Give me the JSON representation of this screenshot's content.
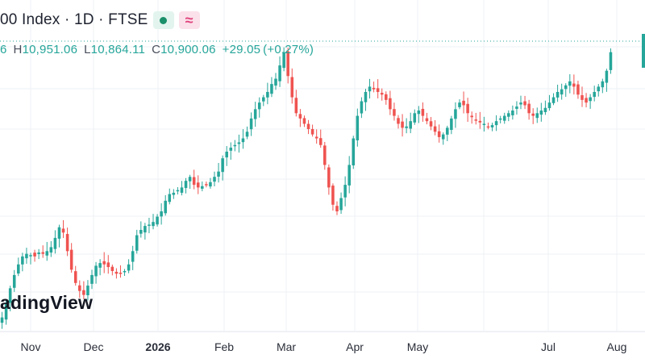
{
  "header": {
    "title_fragment": "00 Index · 1D · FTSE",
    "live_icon": "green-dot-icon",
    "indicator_icon": "wave-icon"
  },
  "ohlc": {
    "open_fragment": "6",
    "high_key": "H",
    "high": "10,951.06",
    "low_key": "L",
    "low": "10,864.11",
    "close_key": "C",
    "close": "10,900.06",
    "change": "+29.05",
    "change_pct": "(+0.27%)"
  },
  "watermark": {
    "text": "adingView"
  },
  "colors": {
    "up": "#26a69a",
    "down": "#ef5350",
    "grid": "#eef0f4",
    "text": "#2a2e39",
    "accent_teal": "#26a69a"
  },
  "chart_data": {
    "type": "candlestick",
    "title": "",
    "xlabel": "",
    "ylabel": "",
    "interval": "1D",
    "x_tick_labels": [
      "Nov",
      "Dec",
      "2026",
      "Feb",
      "Mar",
      "Apr",
      "May",
      "Jul",
      "Aug"
    ],
    "ylim": [
      8800,
      11050
    ],
    "grid": true,
    "last_close": 10900.06,
    "close_path": [
      8900,
      9010,
      9120,
      9220,
      9300,
      9360,
      9380,
      9370,
      9360,
      9390,
      9380,
      9400,
      9430,
      9500,
      9580,
      9540,
      9400,
      9260,
      9160,
      9100,
      9070,
      9140,
      9220,
      9290,
      9310,
      9300,
      9280,
      9250,
      9230,
      9230,
      9250,
      9300,
      9400,
      9520,
      9560,
      9590,
      9600,
      9620,
      9660,
      9700,
      9780,
      9830,
      9840,
      9860,
      9880,
      9930,
      9960,
      9900,
      9880,
      9890,
      9900,
      9920,
      9960,
      10000,
      10100,
      10150,
      10180,
      10200,
      10220,
      10250,
      10300,
      10400,
      10470,
      10520,
      10560,
      10600,
      10660,
      10700,
      10800,
      10900,
      10720,
      10560,
      10440,
      10400,
      10360,
      10320,
      10280,
      10250,
      10200,
      10050,
      9880,
      9750,
      9700,
      9800,
      9900,
      10050,
      10250,
      10420,
      10530,
      10600,
      10640,
      10620,
      10600,
      10580,
      10540,
      10470,
      10420,
      10360,
      10330,
      10340,
      10380,
      10440,
      10460,
      10420,
      10380,
      10340,
      10300,
      10260,
      10280,
      10330,
      10400,
      10470,
      10520,
      10500,
      10440,
      10410,
      10390,
      10370,
      10360,
      10340,
      10350,
      10380,
      10400,
      10420,
      10440,
      10460,
      10490,
      10520,
      10500,
      10440,
      10420,
      10440,
      10460,
      10480,
      10520,
      10560,
      10600,
      10620,
      10650,
      10680,
      10640,
      10580,
      10540,
      10520,
      10560,
      10600,
      10640,
      10680,
      10760,
      10900
    ]
  }
}
